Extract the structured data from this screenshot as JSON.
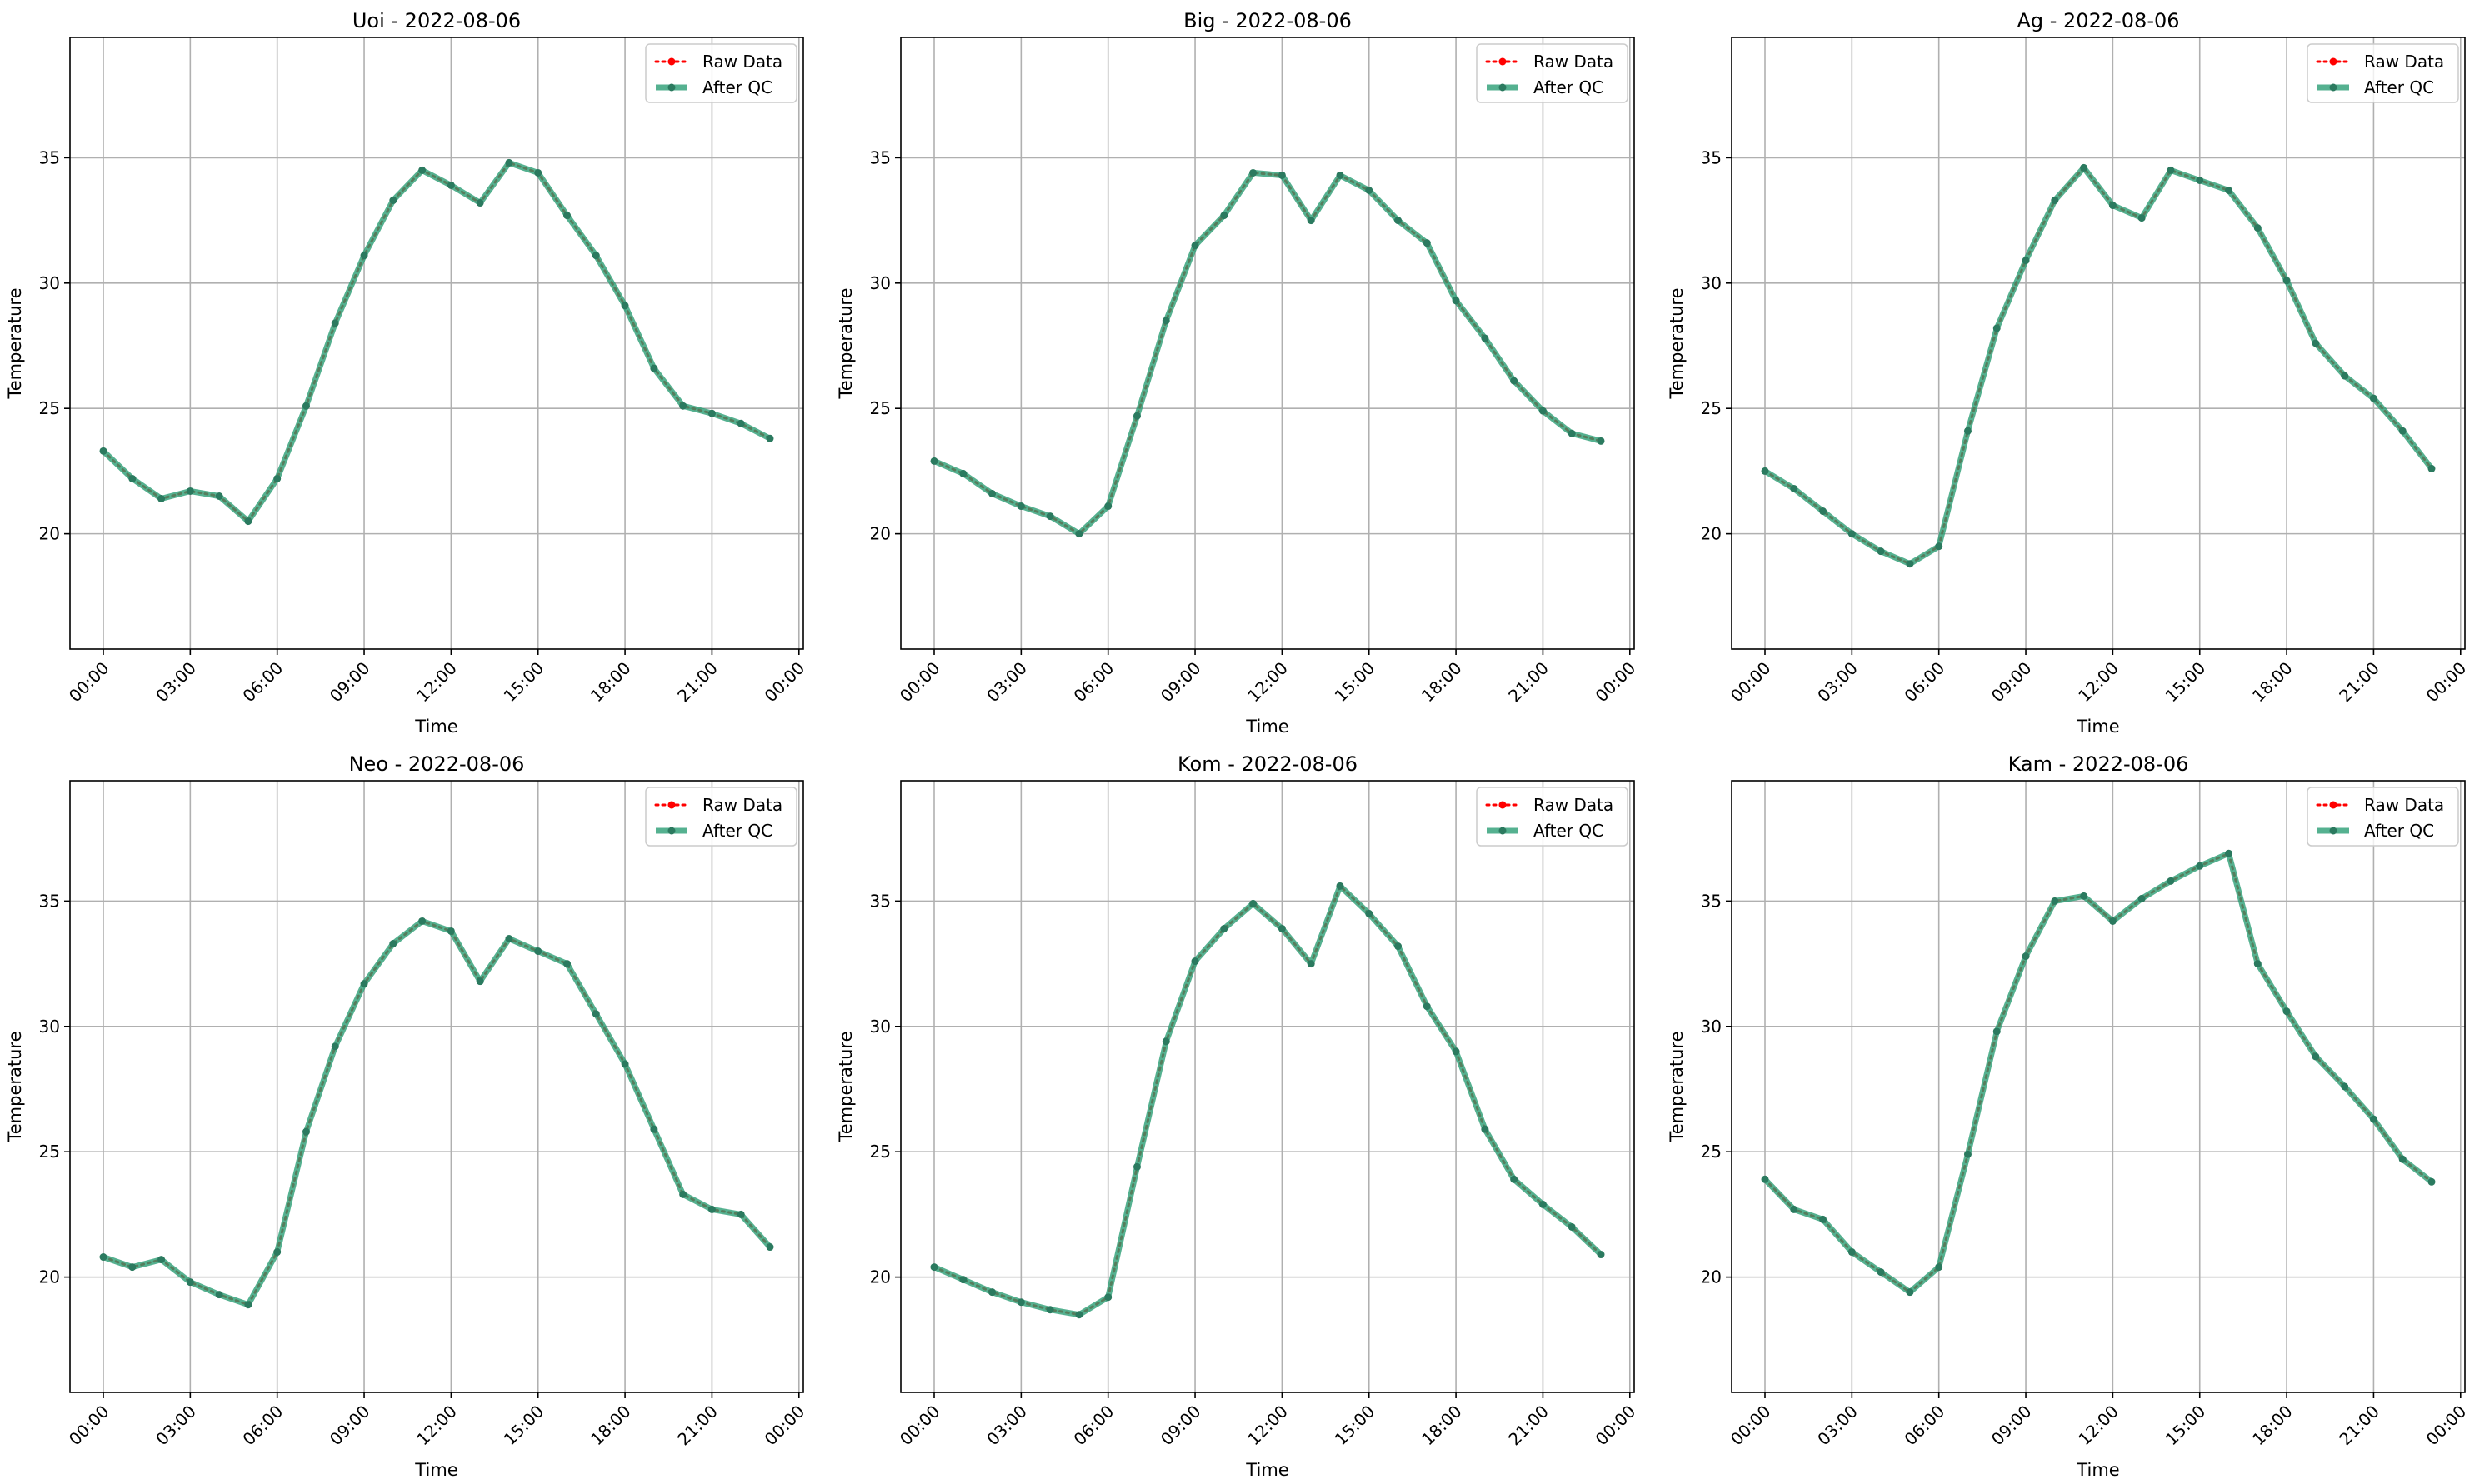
{
  "chart_data": [
    {
      "type": "line",
      "title": "Uoi - 2022-08-06",
      "xlabel": "Time",
      "ylabel": "Temperature",
      "xlim": [
        -1.15,
        24.15
      ],
      "ylim": [
        15.4,
        39.8
      ],
      "xticks": [
        0,
        3,
        6,
        9,
        12,
        15,
        18,
        21,
        24
      ],
      "xtick_labels": [
        "00:00",
        "03:00",
        "06:00",
        "09:00",
        "12:00",
        "15:00",
        "18:00",
        "21:00",
        "00:00"
      ],
      "yticks": [
        20,
        25,
        30,
        35
      ],
      "ytick_labels": [
        "20",
        "25",
        "30",
        "35"
      ],
      "grid": true,
      "legend_position": "top-right",
      "x": [
        0,
        1,
        2,
        3,
        4,
        5,
        6,
        7,
        8,
        9,
        10,
        11,
        12,
        13,
        14,
        15,
        16,
        17,
        18,
        19,
        20,
        21,
        22,
        23
      ],
      "series": [
        {
          "name": "Raw Data",
          "style": "dotted",
          "color": "#ff0000",
          "values": [
            23.3,
            22.2,
            21.4,
            21.7,
            21.5,
            20.5,
            22.2,
            25.1,
            28.4,
            31.1,
            33.3,
            34.5,
            33.9,
            33.2,
            34.8,
            34.4,
            32.7,
            31.1,
            29.1,
            26.6,
            25.1,
            24.8,
            24.4,
            23.8
          ]
        },
        {
          "name": "After QC",
          "style": "solid",
          "color": "#2a9d74",
          "values": [
            23.3,
            22.2,
            21.4,
            21.7,
            21.5,
            20.5,
            22.2,
            25.1,
            28.4,
            31.1,
            33.3,
            34.5,
            33.9,
            33.2,
            34.8,
            34.4,
            32.7,
            31.1,
            29.1,
            26.6,
            25.1,
            24.8,
            24.4,
            23.8
          ]
        }
      ]
    },
    {
      "type": "line",
      "title": "Big - 2022-08-06",
      "xlabel": "Time",
      "ylabel": "Temperature",
      "xlim": [
        -1.15,
        24.15
      ],
      "ylim": [
        15.4,
        39.8
      ],
      "xticks": [
        0,
        3,
        6,
        9,
        12,
        15,
        18,
        21,
        24
      ],
      "xtick_labels": [
        "00:00",
        "03:00",
        "06:00",
        "09:00",
        "12:00",
        "15:00",
        "18:00",
        "21:00",
        "00:00"
      ],
      "yticks": [
        20,
        25,
        30,
        35
      ],
      "ytick_labels": [
        "20",
        "25",
        "30",
        "35"
      ],
      "grid": true,
      "legend_position": "top-right",
      "x": [
        0,
        1,
        2,
        3,
        4,
        5,
        6,
        7,
        8,
        9,
        10,
        11,
        12,
        13,
        14,
        15,
        16,
        17,
        18,
        19,
        20,
        21,
        22,
        23
      ],
      "series": [
        {
          "name": "Raw Data",
          "style": "dotted",
          "color": "#ff0000",
          "values": [
            22.9,
            22.4,
            21.6,
            21.1,
            20.7,
            20.0,
            21.1,
            24.7,
            28.5,
            31.5,
            32.7,
            34.4,
            34.3,
            32.5,
            34.3,
            33.7,
            32.5,
            31.6,
            29.3,
            27.8,
            26.1,
            24.9,
            24.0,
            23.7
          ]
        },
        {
          "name": "After QC",
          "style": "solid",
          "color": "#2a9d74",
          "values": [
            22.9,
            22.4,
            21.6,
            21.1,
            20.7,
            20.0,
            21.1,
            24.7,
            28.5,
            31.5,
            32.7,
            34.4,
            34.3,
            32.5,
            34.3,
            33.7,
            32.5,
            31.6,
            29.3,
            27.8,
            26.1,
            24.9,
            24.0,
            23.7
          ]
        }
      ]
    },
    {
      "type": "line",
      "title": "Ag - 2022-08-06",
      "xlabel": "Time",
      "ylabel": "Temperature",
      "xlim": [
        -1.15,
        24.15
      ],
      "ylim": [
        15.4,
        39.8
      ],
      "xticks": [
        0,
        3,
        6,
        9,
        12,
        15,
        18,
        21,
        24
      ],
      "xtick_labels": [
        "00:00",
        "03:00",
        "06:00",
        "09:00",
        "12:00",
        "15:00",
        "18:00",
        "21:00",
        "00:00"
      ],
      "yticks": [
        20,
        25,
        30,
        35
      ],
      "ytick_labels": [
        "20",
        "25",
        "30",
        "35"
      ],
      "grid": true,
      "legend_position": "top-right",
      "x": [
        0,
        1,
        2,
        3,
        4,
        5,
        6,
        7,
        8,
        9,
        10,
        11,
        12,
        13,
        14,
        15,
        16,
        17,
        18,
        19,
        20,
        21,
        22,
        23
      ],
      "series": [
        {
          "name": "Raw Data",
          "style": "dotted",
          "color": "#ff0000",
          "values": [
            22.5,
            21.8,
            20.9,
            20.0,
            19.3,
            18.8,
            19.5,
            24.1,
            28.2,
            30.9,
            33.3,
            34.6,
            33.1,
            32.6,
            34.5,
            34.1,
            33.7,
            32.2,
            30.1,
            27.6,
            26.3,
            25.4,
            24.1,
            22.6
          ]
        },
        {
          "name": "After QC",
          "style": "solid",
          "color": "#2a9d74",
          "values": [
            22.5,
            21.8,
            20.9,
            20.0,
            19.3,
            18.8,
            19.5,
            24.1,
            28.2,
            30.9,
            33.3,
            34.6,
            33.1,
            32.6,
            34.5,
            34.1,
            33.7,
            32.2,
            30.1,
            27.6,
            26.3,
            25.4,
            24.1,
            22.6
          ]
        }
      ]
    },
    {
      "type": "line",
      "title": "Neo - 2022-08-06",
      "xlabel": "Time",
      "ylabel": "Temperature",
      "xlim": [
        -1.15,
        24.15
      ],
      "ylim": [
        15.4,
        39.8
      ],
      "xticks": [
        0,
        3,
        6,
        9,
        12,
        15,
        18,
        21,
        24
      ],
      "xtick_labels": [
        "00:00",
        "03:00",
        "06:00",
        "09:00",
        "12:00",
        "15:00",
        "18:00",
        "21:00",
        "00:00"
      ],
      "yticks": [
        20,
        25,
        30,
        35
      ],
      "ytick_labels": [
        "20",
        "25",
        "30",
        "35"
      ],
      "grid": true,
      "legend_position": "top-right",
      "x": [
        0,
        1,
        2,
        3,
        4,
        5,
        6,
        7,
        8,
        9,
        10,
        11,
        12,
        13,
        14,
        15,
        16,
        17,
        18,
        19,
        20,
        21,
        22,
        23
      ],
      "series": [
        {
          "name": "Raw Data",
          "style": "dotted",
          "color": "#ff0000",
          "values": [
            20.8,
            20.4,
            20.7,
            19.8,
            19.3,
            18.9,
            21.0,
            25.8,
            29.2,
            31.7,
            33.3,
            34.2,
            33.8,
            31.8,
            33.5,
            33.0,
            32.5,
            30.5,
            28.5,
            25.9,
            23.3,
            22.7,
            22.5,
            21.2
          ]
        },
        {
          "name": "After QC",
          "style": "solid",
          "color": "#2a9d74",
          "values": [
            20.8,
            20.4,
            20.7,
            19.8,
            19.3,
            18.9,
            21.0,
            25.8,
            29.2,
            31.7,
            33.3,
            34.2,
            33.8,
            31.8,
            33.5,
            33.0,
            32.5,
            30.5,
            28.5,
            25.9,
            23.3,
            22.7,
            22.5,
            21.2
          ]
        }
      ]
    },
    {
      "type": "line",
      "title": "Kom - 2022-08-06",
      "xlabel": "Time",
      "ylabel": "Temperature",
      "xlim": [
        -1.15,
        24.15
      ],
      "ylim": [
        15.4,
        39.8
      ],
      "xticks": [
        0,
        3,
        6,
        9,
        12,
        15,
        18,
        21,
        24
      ],
      "xtick_labels": [
        "00:00",
        "03:00",
        "06:00",
        "09:00",
        "12:00",
        "15:00",
        "18:00",
        "21:00",
        "00:00"
      ],
      "yticks": [
        20,
        25,
        30,
        35
      ],
      "ytick_labels": [
        "20",
        "25",
        "30",
        "35"
      ],
      "grid": true,
      "legend_position": "top-right",
      "x": [
        0,
        1,
        2,
        3,
        4,
        5,
        6,
        7,
        8,
        9,
        10,
        11,
        12,
        13,
        14,
        15,
        16,
        17,
        18,
        19,
        20,
        21,
        22,
        23
      ],
      "series": [
        {
          "name": "Raw Data",
          "style": "dotted",
          "color": "#ff0000",
          "values": [
            20.4,
            19.9,
            19.4,
            19.0,
            18.7,
            18.5,
            19.2,
            24.4,
            29.4,
            32.6,
            33.9,
            34.9,
            33.9,
            32.5,
            35.6,
            34.5,
            33.2,
            30.8,
            29.0,
            25.9,
            23.9,
            22.9,
            22.0,
            20.9
          ]
        },
        {
          "name": "After QC",
          "style": "solid",
          "color": "#2a9d74",
          "values": [
            20.4,
            19.9,
            19.4,
            19.0,
            18.7,
            18.5,
            19.2,
            24.4,
            29.4,
            32.6,
            33.9,
            34.9,
            33.9,
            32.5,
            35.6,
            34.5,
            33.2,
            30.8,
            29.0,
            25.9,
            23.9,
            22.9,
            22.0,
            20.9
          ]
        }
      ]
    },
    {
      "type": "line",
      "title": "Kam - 2022-08-06",
      "xlabel": "Time",
      "ylabel": "Temperature",
      "xlim": [
        -1.15,
        24.15
      ],
      "ylim": [
        15.4,
        39.8
      ],
      "xticks": [
        0,
        3,
        6,
        9,
        12,
        15,
        18,
        21,
        24
      ],
      "xtick_labels": [
        "00:00",
        "03:00",
        "06:00",
        "09:00",
        "12:00",
        "15:00",
        "18:00",
        "21:00",
        "00:00"
      ],
      "yticks": [
        20,
        25,
        30,
        35
      ],
      "ytick_labels": [
        "20",
        "25",
        "30",
        "35"
      ],
      "grid": true,
      "legend_position": "top-right",
      "x": [
        0,
        1,
        2,
        3,
        4,
        5,
        6,
        7,
        8,
        9,
        10,
        11,
        12,
        13,
        14,
        15,
        16,
        17,
        18,
        19,
        20,
        21,
        22,
        23
      ],
      "series": [
        {
          "name": "Raw Data",
          "style": "dotted",
          "color": "#ff0000",
          "values": [
            23.9,
            22.7,
            22.3,
            21.0,
            20.2,
            19.4,
            20.4,
            24.9,
            29.8,
            32.8,
            35.0,
            35.2,
            34.2,
            35.1,
            35.8,
            36.4,
            36.9,
            32.5,
            30.6,
            28.8,
            27.6,
            26.3,
            24.7,
            23.8
          ]
        },
        {
          "name": "After QC",
          "style": "solid",
          "color": "#2a9d74",
          "values": [
            23.9,
            22.7,
            22.3,
            21.0,
            20.2,
            19.4,
            20.4,
            24.9,
            29.8,
            32.8,
            35.0,
            35.2,
            34.2,
            35.1,
            35.8,
            36.4,
            36.9,
            32.5,
            30.6,
            28.8,
            27.6,
            26.3,
            24.7,
            23.8
          ]
        }
      ]
    }
  ]
}
